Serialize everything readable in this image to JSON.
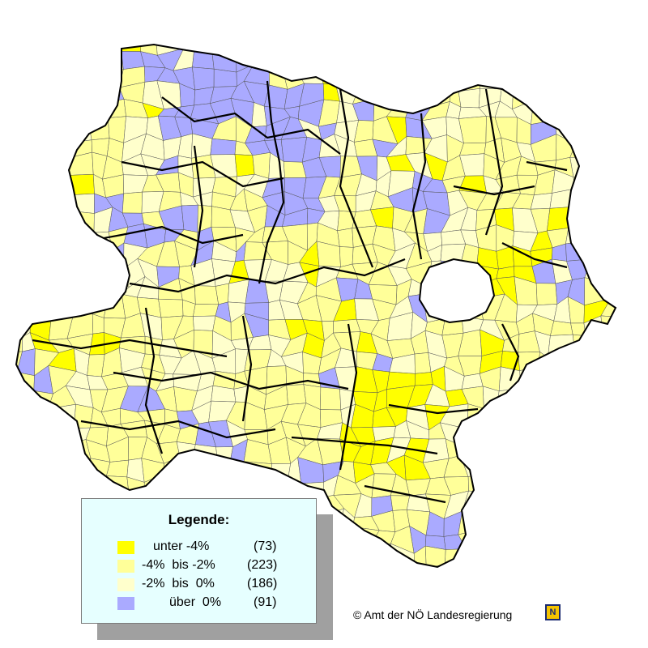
{
  "map": {
    "colors": {
      "unter_minus4": "#ffff00",
      "minus4_bis_minus2": "#ffff99",
      "minus2_bis_0": "#ffffcc",
      "ueber_0": "#aaaaff",
      "district_border": "#000000",
      "municipality_border": "#555555"
    }
  },
  "legend": {
    "title": "Legende:",
    "items": [
      {
        "label": "unter -4%",
        "count": "(73)",
        "color": "#ffff00"
      },
      {
        "label": "-4%  bis -2%",
        "count": "(223)",
        "color": "#ffff99"
      },
      {
        "label": "-2%  bis  0%",
        "count": "(186)",
        "color": "#ffffcc"
      },
      {
        "label": "über  0%",
        "count": "(91)",
        "color": "#aaaaff"
      }
    ]
  },
  "footer": {
    "copyright": "© Amt der NÖ Landesregierung",
    "logo_text": "N"
  }
}
